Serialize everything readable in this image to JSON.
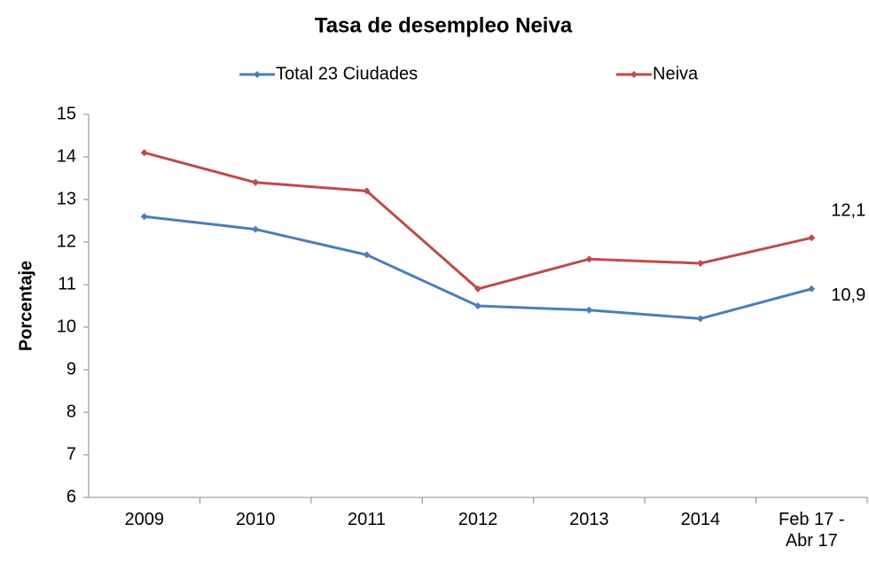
{
  "chart_data": {
    "type": "line",
    "title": "Tasa de desempleo Neiva",
    "y_label": "Porcentaje",
    "categories": [
      "2009",
      "2010",
      "2011",
      "2012",
      "2013",
      "2014",
      "Feb 17 - Abr 17"
    ],
    "series": [
      {
        "name": "Total 23 Ciudades",
        "color": "#4a7ebb",
        "values": [
          12.6,
          12.3,
          11.7,
          10.5,
          10.4,
          10.2,
          10.9
        ],
        "value_labels": [
          null,
          null,
          null,
          null,
          null,
          null,
          "10,9"
        ]
      },
      {
        "name": "Neiva",
        "color": "#be4b48",
        "values": [
          14.1,
          13.4,
          13.2,
          10.9,
          11.6,
          11.5,
          12.1
        ],
        "value_labels": [
          null,
          null,
          null,
          null,
          null,
          null,
          "12,1"
        ]
      }
    ],
    "ylim": [
      6,
      15
    ],
    "yticks": [
      6,
      7,
      8,
      9,
      10,
      11,
      12,
      13,
      14,
      15
    ],
    "grid": false,
    "legend": "top"
  }
}
